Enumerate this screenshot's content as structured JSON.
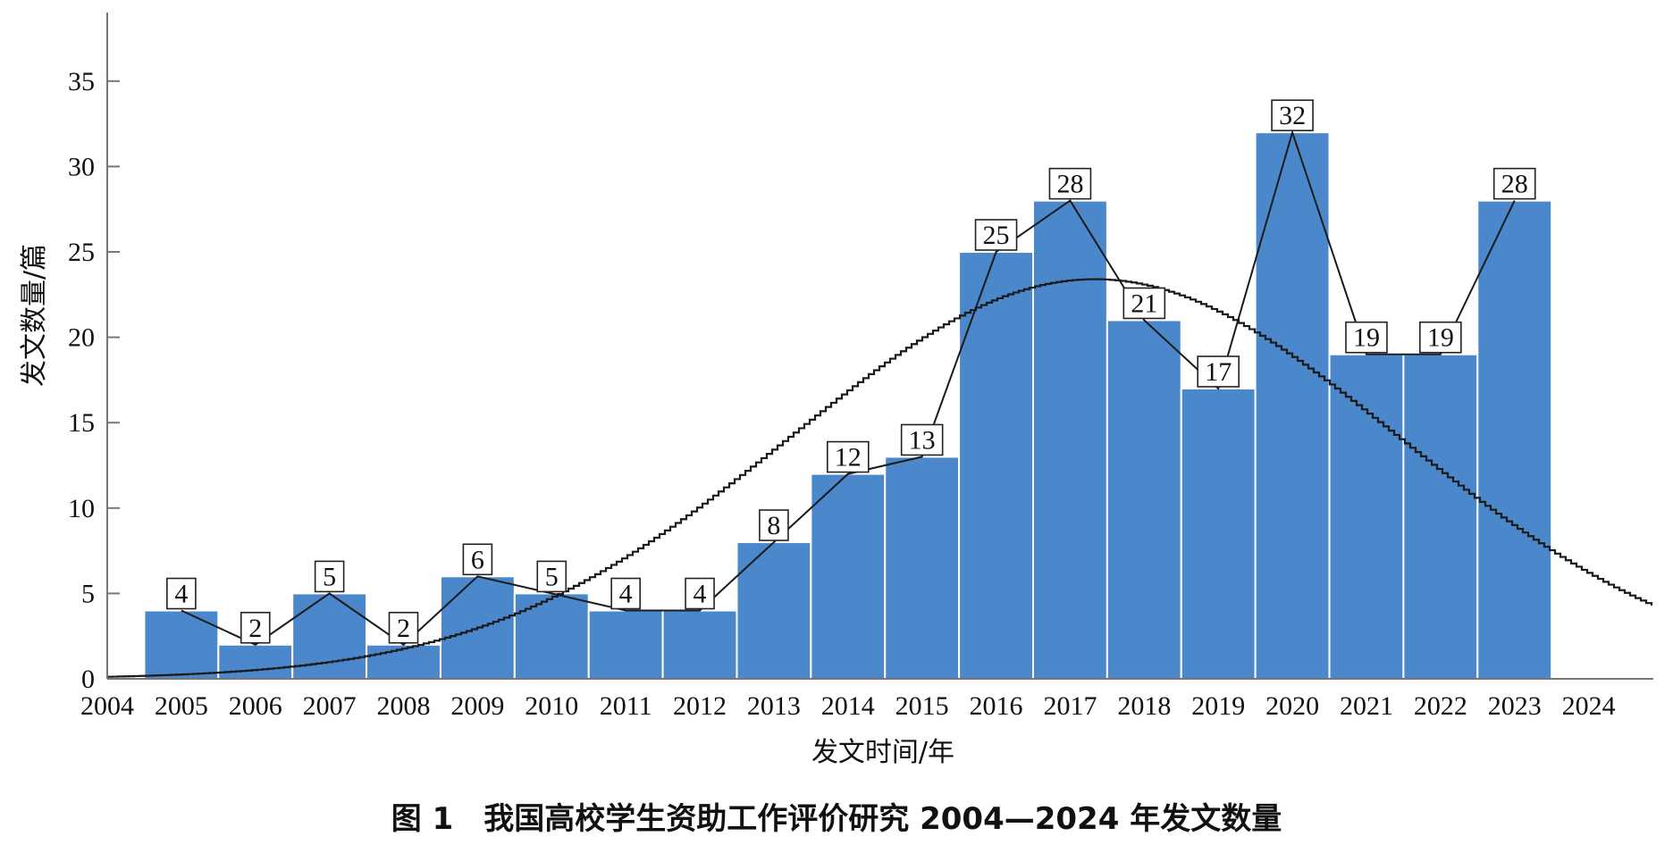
{
  "chart_data": {
    "type": "bar",
    "title": "图 1　我国高校学生资助工作评价研究 2004—2024 年发文数量",
    "xlabel": "发文时间/年",
    "ylabel": "发文数量/篇",
    "x_ticks": [
      "2004",
      "2005",
      "2006",
      "2007",
      "2008",
      "2009",
      "2010",
      "2011",
      "2012",
      "2013",
      "2014",
      "2015",
      "2016",
      "2017",
      "2018",
      "2019",
      "2020",
      "2021",
      "2022",
      "2023",
      "2024"
    ],
    "categories": [
      "2005",
      "2006",
      "2007",
      "2008",
      "2009",
      "2010",
      "2011",
      "2012",
      "2013",
      "2014",
      "2015",
      "2016",
      "2017",
      "2018",
      "2019",
      "2020",
      "2021",
      "2022",
      "2023"
    ],
    "values": [
      4,
      2,
      5,
      2,
      6,
      5,
      4,
      4,
      8,
      12,
      13,
      25,
      28,
      21,
      17,
      32,
      19,
      19,
      28
    ],
    "value_labels": [
      "4",
      "2",
      "5",
      "2",
      "6",
      "5",
      "4",
      "4",
      "8",
      "12",
      "13",
      "25",
      "28",
      "21",
      "17",
      "32",
      "19",
      "19",
      "28"
    ],
    "y_ticks": [
      "0",
      "5",
      "10",
      "15",
      "20",
      "25",
      "30",
      "35"
    ],
    "ylim": [
      0,
      38
    ],
    "xlim": [
      2004,
      2024
    ],
    "overlays": [
      "connecting line through bar values",
      "normal distribution fit curve"
    ],
    "fit_curve": {
      "mean": 2017.3,
      "sd": 4.1,
      "peak": 23.4
    },
    "grid": false,
    "legend": "none",
    "colors": {
      "bar": "#4A88CB",
      "bar_edge": "#ffffff",
      "line": "#1a1a1a",
      "axis": "#777777"
    }
  }
}
